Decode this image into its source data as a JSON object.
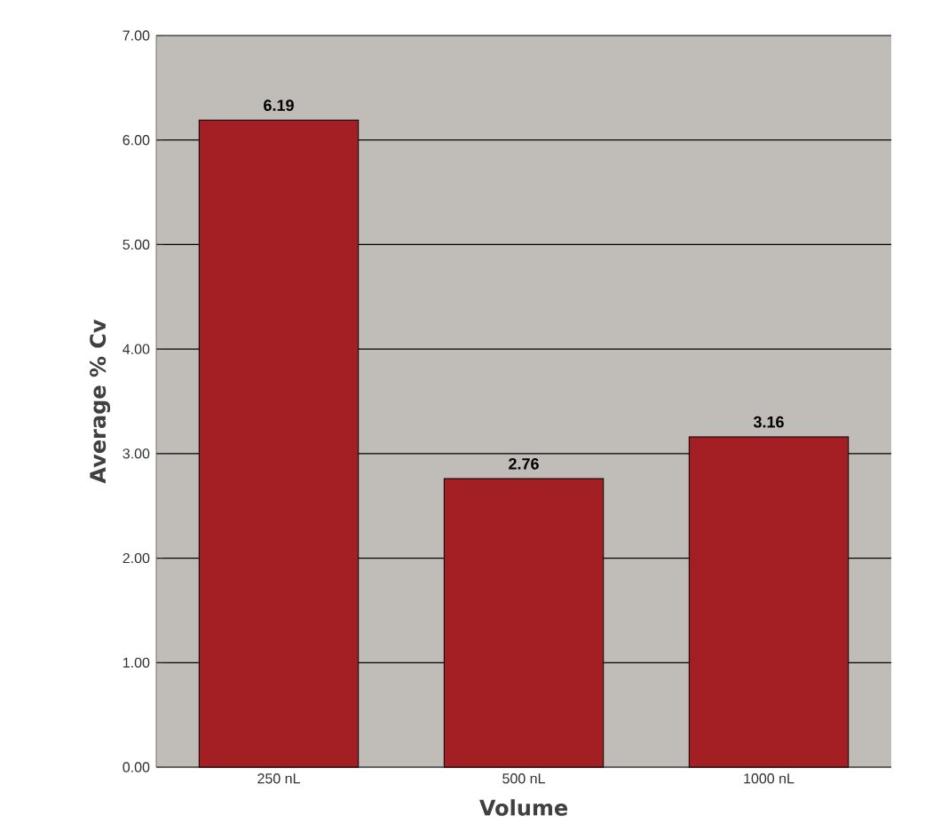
{
  "chart_data": {
    "type": "bar",
    "xlabel": "Volume",
    "ylabel": "Average % Cv",
    "categories": [
      "250 nL",
      "500 nL",
      "1000 nL"
    ],
    "values": [
      6.19,
      2.76,
      3.16
    ],
    "color": "#a41f23",
    "data_labels": true,
    "ylim": [
      0,
      7
    ],
    "yticks": [
      {
        "value": 0,
        "label": "0.00"
      },
      {
        "value": 1,
        "label": "1.00"
      },
      {
        "value": 2,
        "label": "2.00"
      },
      {
        "value": 3,
        "label": "3.00"
      },
      {
        "value": 4,
        "label": "4.00"
      },
      {
        "value": 5,
        "label": "5.00"
      },
      {
        "value": 6,
        "label": "6.00"
      },
      {
        "value": 7,
        "label": "7.00"
      }
    ],
    "grid": "y"
  }
}
